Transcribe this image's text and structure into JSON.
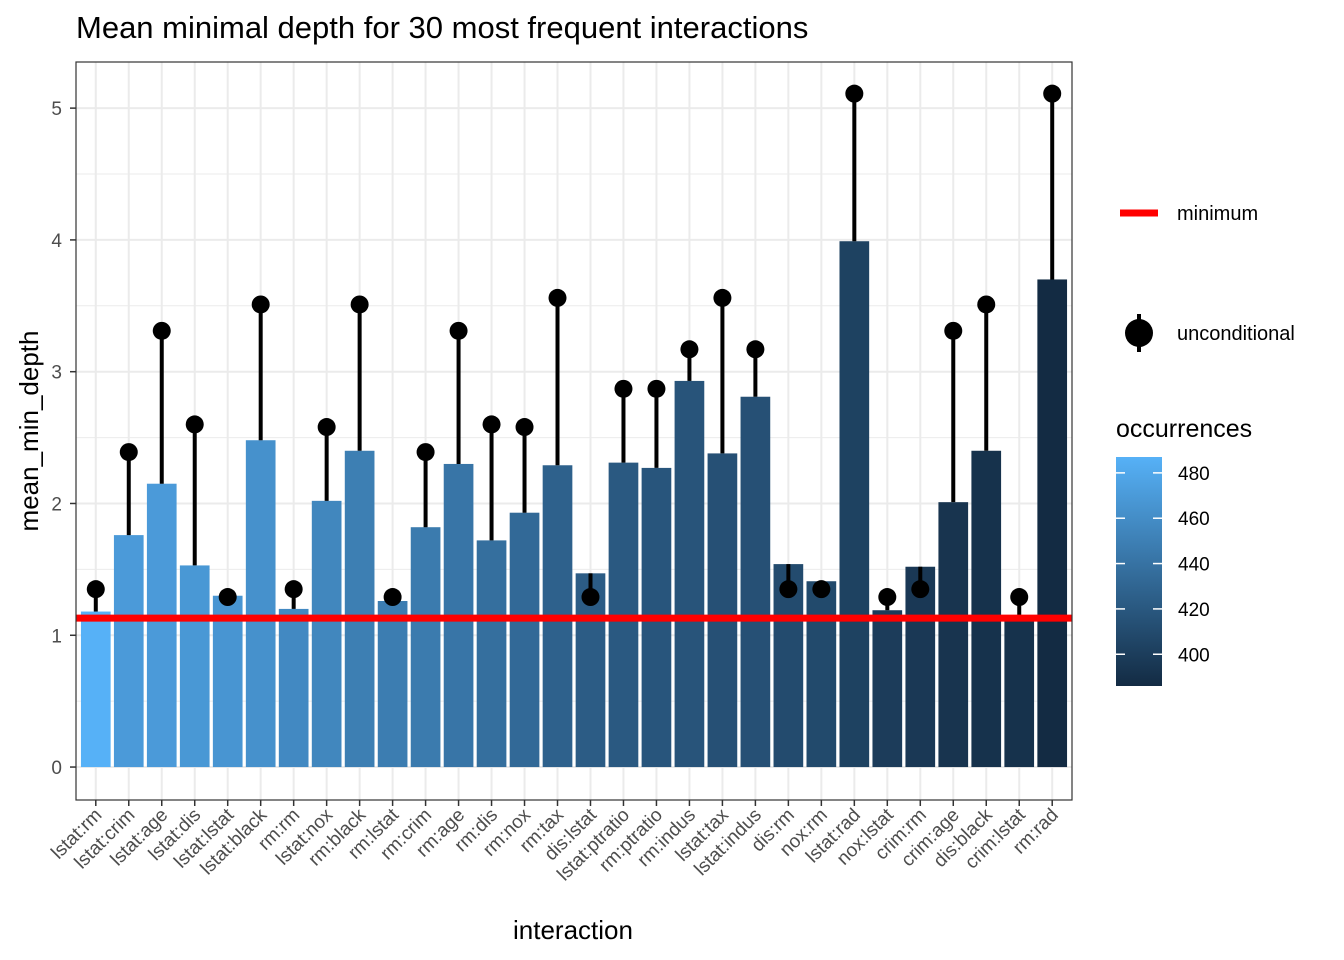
{
  "chart_data": {
    "type": "bar",
    "title": "Mean minimal depth for 30 most frequent interactions",
    "xlabel": "interaction",
    "ylabel": "mean_min_depth",
    "ylim": [
      -0.25,
      5.35
    ],
    "yticks": [
      0,
      1,
      2,
      3,
      4,
      5
    ],
    "categories": [
      "lstat:rm",
      "lstat:crim",
      "lstat:age",
      "lstat:dis",
      "lstat:lstat",
      "lstat:black",
      "rm:rm",
      "lstat:nox",
      "rm:black",
      "rm:lstat",
      "rm:crim",
      "rm:age",
      "rm:dis",
      "rm:nox",
      "rm:tax",
      "dis:lstat",
      "lstat:ptratio",
      "rm:ptratio",
      "rm:indus",
      "lstat:tax",
      "lstat:indus",
      "dis:rm",
      "nox:rm",
      "lstat:rad",
      "nox:lstat",
      "crim:rm",
      "crim:age",
      "dis:black",
      "crim:lstat",
      "rm:rad"
    ],
    "series": [
      {
        "name": "mean_min_depth",
        "values": [
          1.18,
          1.76,
          2.15,
          1.53,
          1.3,
          2.48,
          1.2,
          2.02,
          2.4,
          1.26,
          1.82,
          2.3,
          1.72,
          1.93,
          2.29,
          1.47,
          2.31,
          2.27,
          2.93,
          2.38,
          2.81,
          1.54,
          1.41,
          3.99,
          1.19,
          1.52,
          2.01,
          2.4,
          1.14,
          3.7
        ]
      },
      {
        "name": "unconditional",
        "values": [
          1.35,
          2.39,
          3.31,
          2.6,
          1.29,
          3.51,
          1.35,
          2.58,
          3.51,
          1.29,
          2.39,
          3.31,
          2.6,
          2.58,
          3.56,
          1.29,
          2.87,
          2.87,
          3.17,
          3.56,
          3.17,
          1.35,
          1.35,
          5.11,
          1.29,
          1.35,
          3.31,
          3.51,
          1.29,
          5.11
        ]
      },
      {
        "name": "occurrences",
        "values": [
          487,
          470,
          470,
          468,
          466,
          463,
          457,
          455,
          449,
          448,
          446,
          442,
          437,
          433,
          427,
          423,
          421,
          418,
          417,
          414,
          414,
          410,
          409,
          403,
          399,
          396,
          393,
          391,
          391,
          386
        ]
      }
    ],
    "minimum": 1.13,
    "legend": {
      "position": "right",
      "minimum_label": "minimum",
      "unconditional_label": "unconditional",
      "colorbar_title": "occurrences",
      "colorbar_ticks": [
        "480",
        "460",
        "440",
        "420",
        "400"
      ],
      "colorbar_tick_values": [
        480,
        460,
        440,
        420,
        400
      ],
      "colorbar_range": [
        386,
        487
      ]
    },
    "colors": {
      "high": "#56B1F7",
      "low": "#132B43",
      "minimum_line": "#FF0000",
      "unconditional": "#000000",
      "grid": "#EBEBEB",
      "panel_border": "#333333"
    },
    "grid": true
  }
}
